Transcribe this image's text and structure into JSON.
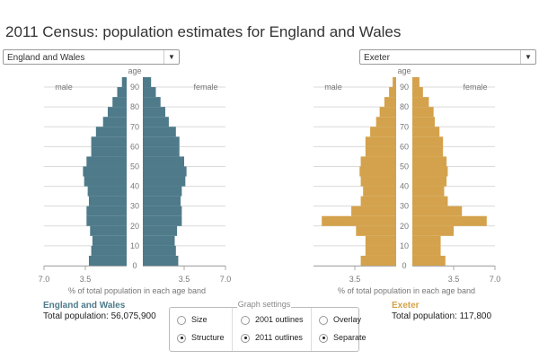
{
  "title": "2011 Census: population estimates for England and Wales",
  "selects": {
    "left": "England and Wales",
    "right": "Exeter"
  },
  "labels": {
    "male": "male",
    "female": "female",
    "age": "age",
    "axis_caption": "% of total population in each age band"
  },
  "legend": {
    "left": {
      "name": "England and Wales",
      "total": "Total population: 56,075,900"
    },
    "right": {
      "name": "Exeter",
      "total": "Total population: 117,800"
    }
  },
  "settings": {
    "title": "Graph settings",
    "options": [
      {
        "label": "Size",
        "checked": false
      },
      {
        "label": "Structure",
        "checked": true
      },
      {
        "label": "2001 outlines",
        "checked": false
      },
      {
        "label": "2011 outlines",
        "checked": true
      },
      {
        "label": "Overlay",
        "checked": false
      },
      {
        "label": "Separate",
        "checked": true
      }
    ]
  },
  "chart_data": [
    {
      "type": "bar",
      "name": "England and Wales",
      "color": "#4e7a8a",
      "age_ticks": [
        "0",
        "10",
        "20",
        "30",
        "40",
        "50",
        "60",
        "70",
        "80",
        "90"
      ],
      "x_ticks": [
        "7.0",
        "3.5",
        "3.5",
        "7.0"
      ],
      "xlim": [
        0,
        7
      ],
      "ages": [
        0,
        5,
        10,
        15,
        20,
        25,
        30,
        35,
        40,
        45,
        50,
        55,
        60,
        65,
        70,
        75,
        80,
        85,
        90
      ],
      "male": [
        3.2,
        3.0,
        2.9,
        3.1,
        3.4,
        3.4,
        3.2,
        3.3,
        3.6,
        3.7,
        3.4,
        3.0,
        3.0,
        2.6,
        2.0,
        1.6,
        1.2,
        0.8,
        0.4
      ],
      "female": [
        3.0,
        2.8,
        2.7,
        2.9,
        3.3,
        3.3,
        3.2,
        3.3,
        3.6,
        3.7,
        3.5,
        3.1,
        3.1,
        2.8,
        2.2,
        1.9,
        1.5,
        1.1,
        0.7
      ]
    },
    {
      "type": "bar",
      "name": "Exeter",
      "color": "#d4a24c",
      "age_ticks": [
        "0",
        "10",
        "20",
        "30",
        "40",
        "50",
        "60",
        "70",
        "80",
        "90"
      ],
      "x_ticks": [
        "3.5",
        "3.5",
        "7.0"
      ],
      "xlim": [
        0,
        7
      ],
      "ages": [
        0,
        5,
        10,
        15,
        20,
        25,
        30,
        35,
        40,
        45,
        50,
        55,
        60,
        65,
        70,
        75,
        80,
        85,
        90
      ],
      "male": [
        3.0,
        2.6,
        2.6,
        3.4,
        6.3,
        3.8,
        3.0,
        2.8,
        3.0,
        3.1,
        3.0,
        2.6,
        2.6,
        2.2,
        1.7,
        1.4,
        1.0,
        0.6,
        0.3
      ],
      "female": [
        2.8,
        2.4,
        2.4,
        3.5,
        6.3,
        4.2,
        3.0,
        2.7,
        2.9,
        3.0,
        2.9,
        2.6,
        2.6,
        2.3,
        1.9,
        1.8,
        1.4,
        0.9,
        0.6
      ]
    }
  ]
}
